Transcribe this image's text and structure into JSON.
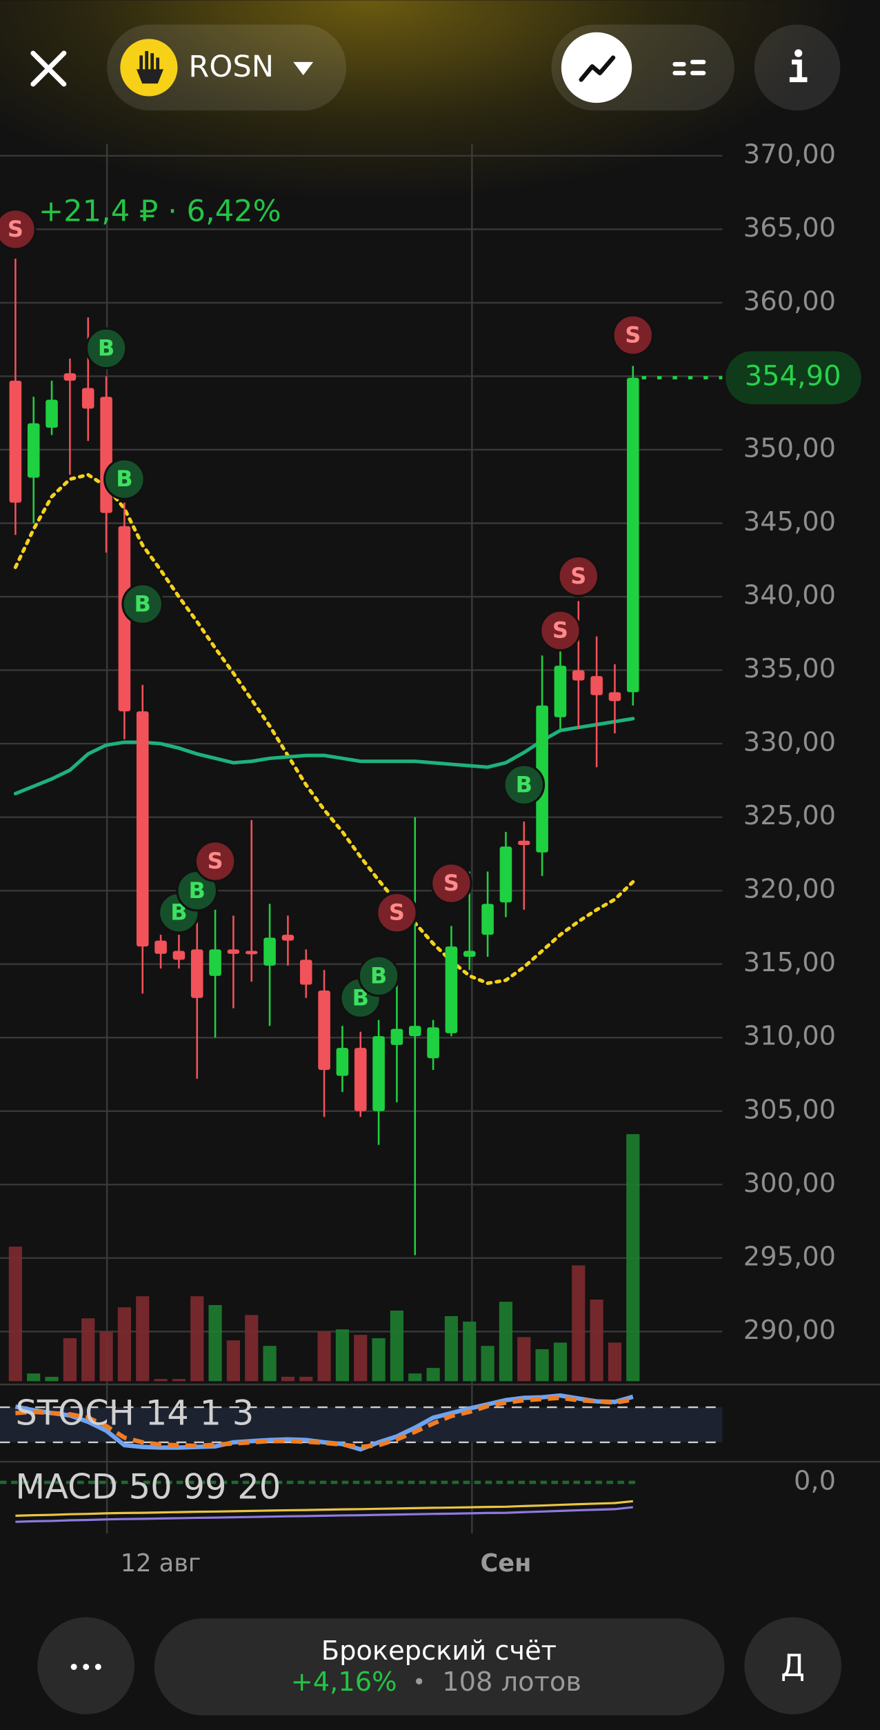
{
  "header": {
    "ticker": "ROSN"
  },
  "chart_data": {
    "type": "candlestick",
    "change": "+21,4 ₽ · 6,42%",
    "categories": [
      null,
      null,
      null,
      null,
      null,
      null,
      null,
      null,
      "12 авг",
      null,
      null,
      null,
      null,
      null,
      null,
      null,
      null,
      null,
      null,
      null,
      null,
      null,
      null,
      null,
      null,
      null,
      null,
      "Сен",
      null,
      null,
      null,
      null,
      null,
      null,
      null
    ],
    "open": [
      354.7,
      348.1,
      351.5,
      355.2,
      354.2,
      353.6,
      344.8,
      332.2,
      316.6,
      315.9,
      316,
      314.2,
      316,
      315.9,
      314.9,
      317,
      315.3,
      313.2,
      307.4,
      309.3,
      305,
      309.5,
      310.1,
      308.6,
      310.3,
      315.5,
      317,
      319.2,
      323.4,
      322.6,
      331.8,
      335,
      334.6,
      333.5,
      333.5
    ],
    "high": [
      363,
      353.6,
      354.7,
      356.2,
      359,
      355,
      346.4,
      334,
      317,
      317,
      318.3,
      318.7,
      318.3,
      324.8,
      319.1,
      318.3,
      316,
      314.6,
      310.8,
      310.4,
      311.2,
      314.6,
      325,
      311.2,
      317.6,
      321.3,
      321.3,
      324,
      324.7,
      336,
      337,
      339.7,
      337.3,
      335.4,
      355.7
    ],
    "low": [
      344.2,
      345,
      351,
      348.3,
      350.6,
      343,
      330.3,
      313,
      314.7,
      314.7,
      307.2,
      310,
      312,
      313.8,
      310.8,
      314.9,
      312.7,
      304.6,
      306.3,
      304.6,
      302.7,
      305.6,
      295.2,
      307.8,
      310.1,
      314.6,
      315.5,
      318.2,
      318.7,
      321,
      331,
      331,
      328.4,
      330.7,
      332.6
    ],
    "close": [
      346.4,
      351.8,
      353.4,
      354.7,
      352.8,
      345.7,
      332.2,
      316.2,
      315.7,
      315.3,
      312.7,
      316,
      315.7,
      315.8,
      316.8,
      316.6,
      313.6,
      307.8,
      309.3,
      305,
      310.1,
      310.6,
      310.8,
      310.7,
      316.2,
      315.9,
      319.1,
      323,
      323.1,
      332.6,
      335.3,
      334.3,
      333.3,
      332.9,
      354.9
    ],
    "volume": [
      122,
      7,
      4,
      39,
      57,
      45,
      67,
      77,
      2,
      2,
      77,
      69,
      37,
      60,
      32,
      4,
      4,
      45,
      47,
      42,
      39,
      64,
      7,
      12,
      59,
      54,
      32,
      72,
      40,
      29,
      35,
      105,
      74,
      35,
      224
    ],
    "up_color": "#1fd141",
    "down_color": "#f2525a",
    "overlays": [
      {
        "color": "#f5d21c",
        "style": "dotted",
        "values": [
          342,
          344.6,
          346.8,
          348,
          348.3,
          347.5,
          346,
          343.5,
          341.8,
          340,
          338.3,
          336.5,
          334.8,
          333,
          331.2,
          329.2,
          327.2,
          325.5,
          324,
          322.3,
          320.7,
          319.2,
          317.8,
          316.4,
          315.2,
          314.2,
          313.7,
          313.9,
          314.8,
          315.9,
          317,
          317.9,
          318.7,
          319.4,
          320.6
        ]
      },
      {
        "color": "#1db27c",
        "style": "solid",
        "values": [
          326.6,
          327.1,
          327.6,
          328.2,
          329.3,
          329.9,
          330.1,
          330.1,
          330,
          329.7,
          329.3,
          329,
          328.7,
          328.8,
          329,
          329.1,
          329.2,
          329.2,
          329,
          328.8,
          328.8,
          328.8,
          328.8,
          328.7,
          328.6,
          328.5,
          328.4,
          328.7,
          329.4,
          330.2,
          330.9,
          331.1,
          331.3,
          331.5,
          331.7
        ]
      }
    ],
    "signals": [
      {
        "label": "S",
        "index": 0,
        "value": 365
      },
      {
        "label": "B",
        "index": 5,
        "value": 356.9
      },
      {
        "label": "B",
        "index": 6,
        "value": 348
      },
      {
        "label": "B",
        "index": 7,
        "value": 339.5
      },
      {
        "label": "B",
        "index": 9,
        "value": 318.5
      },
      {
        "label": "B",
        "index": 10,
        "value": 320
      },
      {
        "label": "S",
        "index": 11,
        "value": 322
      },
      {
        "label": "B",
        "index": 19,
        "value": 312.7
      },
      {
        "label": "B",
        "index": 20,
        "value": 314.2
      },
      {
        "label": "S",
        "index": 21,
        "value": 318.5
      },
      {
        "label": "S",
        "index": 24,
        "value": 320.5
      },
      {
        "label": "B",
        "index": 28,
        "value": 327.2
      },
      {
        "label": "S",
        "index": 30,
        "value": 337.7
      },
      {
        "label": "S",
        "index": 31,
        "value": 341.4
      },
      {
        "label": "S",
        "index": 34,
        "value": 357.8
      }
    ],
    "ylim": [
      290,
      370
    ],
    "yticks": [
      {
        "value": 290,
        "label": "290,00"
      },
      {
        "value": 295,
        "label": "295,00"
      },
      {
        "value": 300,
        "label": "300,00"
      },
      {
        "value": 305,
        "label": "305,00"
      },
      {
        "value": 310,
        "label": "310,00"
      },
      {
        "value": 315,
        "label": "315,00"
      },
      {
        "value": 320,
        "label": "320,00"
      },
      {
        "value": 325,
        "label": "325,00"
      },
      {
        "value": 330,
        "label": "330,00"
      },
      {
        "value": 335,
        "label": "335,00"
      },
      {
        "value": 340,
        "label": "340,00"
      },
      {
        "value": 345,
        "label": "345,00"
      },
      {
        "value": 350,
        "label": "350,00"
      },
      {
        "value": 355,
        "label": "355,00"
      },
      {
        "value": 360,
        "label": "360,00"
      },
      {
        "value": 365,
        "label": "365,00"
      },
      {
        "value": 370,
        "label": "370,00"
      }
    ],
    "last_price": {
      "value": 354.9,
      "label": "354,90"
    },
    "grid": true,
    "stoch": {
      "label": "STOCH 14 1 3",
      "ylim": [
        0,
        100
      ],
      "levels": [
        80,
        20
      ],
      "k": [
        81,
        75,
        70,
        66,
        55,
        40,
        15,
        12,
        11,
        11,
        12,
        13,
        20,
        22,
        24,
        25,
        24,
        20,
        17,
        8,
        20,
        30,
        45,
        62,
        70,
        78,
        85,
        92,
        96,
        97,
        100,
        95,
        90,
        89,
        98
      ],
      "d": [
        70,
        72,
        70,
        68,
        62,
        48,
        28,
        20,
        16,
        15,
        14,
        16,
        18,
        20,
        22,
        22,
        21,
        19,
        16,
        12,
        15,
        25,
        38,
        52,
        65,
        72,
        82,
        88,
        92,
        94,
        96,
        92,
        90,
        88,
        93
      ]
    },
    "macd": {
      "label": "MACD 50 99 20",
      "ylim": [
        -1.5,
        0.5
      ],
      "yticks": [
        {
          "value": 0,
          "label": "0,0"
        }
      ],
      "macd": [
        -1.1,
        -1.08,
        -1.07,
        -1.05,
        -1.04,
        -1.02,
        -1.01,
        -1.0,
        -0.99,
        -0.98,
        -0.97,
        -0.96,
        -0.95,
        -0.94,
        -0.93,
        -0.92,
        -0.91,
        -0.9,
        -0.89,
        -0.88,
        -0.87,
        -0.86,
        -0.85,
        -0.84,
        -0.83,
        -0.82,
        -0.81,
        -0.8,
        -0.78,
        -0.76,
        -0.74,
        -0.72,
        -0.7,
        -0.68,
        -0.62
      ],
      "signal": [
        -1.3,
        -1.28,
        -1.27,
        -1.25,
        -1.24,
        -1.22,
        -1.21,
        -1.2,
        -1.19,
        -1.18,
        -1.17,
        -1.16,
        -1.15,
        -1.14,
        -1.13,
        -1.12,
        -1.11,
        -1.1,
        -1.09,
        -1.08,
        -1.07,
        -1.06,
        -1.05,
        -1.04,
        -1.03,
        -1.02,
        -1.01,
        -1.0,
        -0.98,
        -0.96,
        -0.94,
        -0.92,
        -0.9,
        -0.88,
        -0.82
      ]
    }
  },
  "footer": {
    "account": "Брокерский счёт",
    "return": "+4,16%",
    "separator": "•",
    "lots": "108 лотов",
    "action": "Д"
  }
}
